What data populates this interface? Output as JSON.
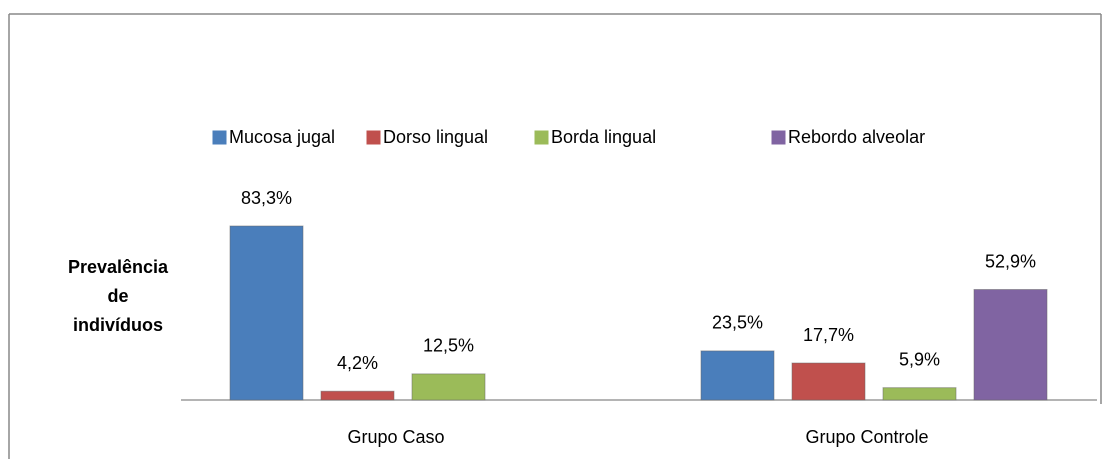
{
  "chart_data": {
    "type": "bar",
    "ylabel": [
      "Prevalência",
      "de",
      "indivíduos"
    ],
    "categories": [
      "Grupo Caso",
      "Grupo Controle"
    ],
    "series": [
      {
        "name": "Mucosa jugal",
        "color": "#4a7ebb",
        "values": [
          83.3,
          23.5
        ],
        "value_labels": [
          "83,3%",
          "23,5%"
        ]
      },
      {
        "name": "Dorso lingual",
        "color": "#c0504d",
        "values": [
          4.2,
          17.7
        ],
        "value_labels": [
          "4,2%",
          "17,7%"
        ]
      },
      {
        "name": "Borda lingual",
        "color": "#9bbb59",
        "values": [
          12.5,
          5.9
        ],
        "value_labels": [
          "12,5%",
          "5,9%"
        ]
      },
      {
        "name": "Rebordo alveolar",
        "color": "#8064a2",
        "values": [
          null,
          52.9
        ],
        "value_labels": [
          null,
          "52,9%"
        ]
      }
    ],
    "legend": "top"
  }
}
